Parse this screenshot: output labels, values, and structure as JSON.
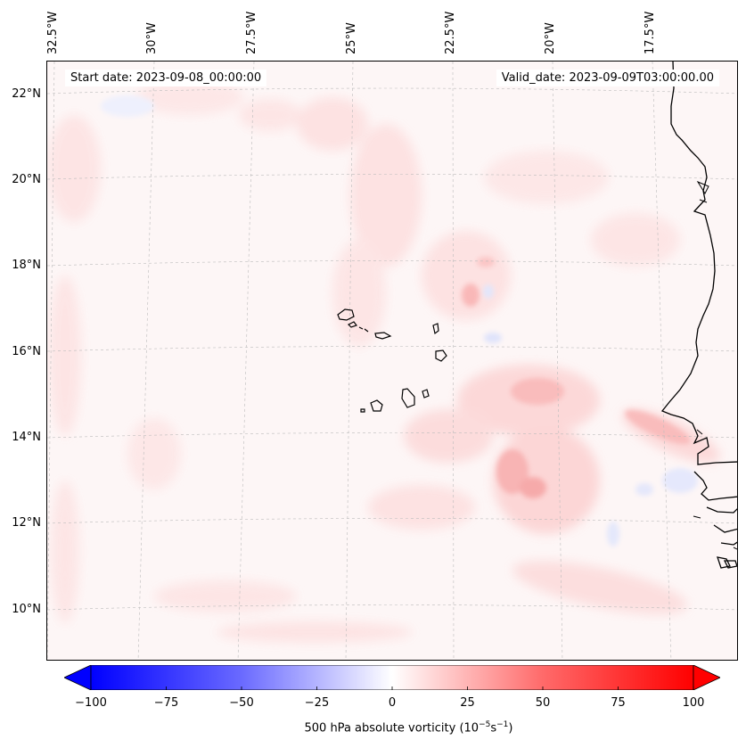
{
  "map": {
    "longitude_labels": [
      "32.5°W",
      "30°W",
      "27.5°W",
      "25°W",
      "22.5°W",
      "20°W",
      "17.5°W"
    ],
    "latitude_labels": [
      "22°N",
      "20°N",
      "18°N",
      "16°N",
      "14°N",
      "12°N",
      "10°N"
    ],
    "start_date": "Start date: 2023-09-08_00:00:00",
    "valid_date": "Valid_date: 2023-09-09T03:00:00.00",
    "field": "500 hPa absolute vorticity"
  },
  "colorbar": {
    "ticks": [
      "−100",
      "−75",
      "−50",
      "−25",
      "0",
      "25",
      "50",
      "75",
      "100"
    ],
    "range": [
      -100,
      100
    ],
    "label_prefix": "500 hPa absolute vorticity (10",
    "label_exp1": "−5",
    "label_mid": "s",
    "label_exp2": "−1",
    "label_suffix": ")",
    "colors": {
      "min": "#0000ff",
      "mid": "#ffffff",
      "max": "#ff0000"
    }
  }
}
